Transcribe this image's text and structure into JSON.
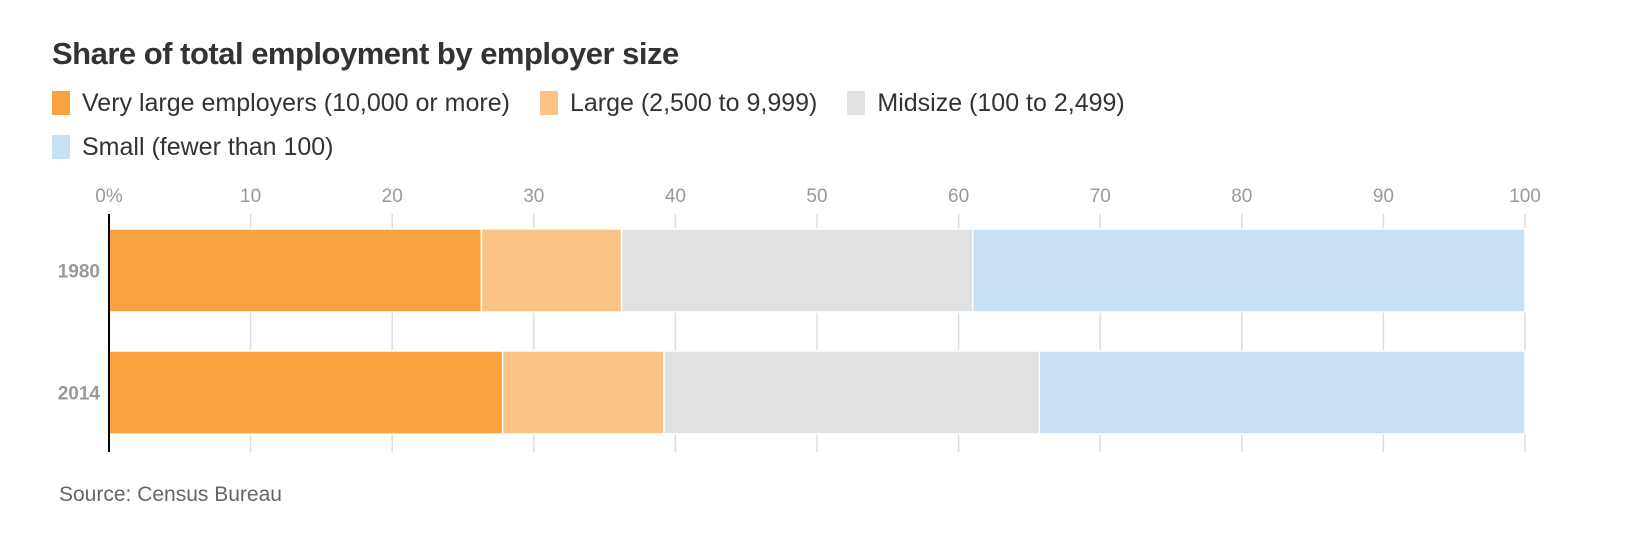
{
  "title": "Share of total employment by employer size",
  "source": "Source: Census Bureau",
  "chart_data": {
    "type": "bar",
    "orientation": "horizontal",
    "stacked": true,
    "categories": [
      "1980",
      "2014"
    ],
    "series": [
      {
        "name": "Very large employers (10,000 or more)",
        "color": "#f7a23f",
        "values": [
          26.3,
          27.8
        ]
      },
      {
        "name": "Large (2,500 to 9,999)",
        "color": "#fbc285",
        "values": [
          9.9,
          11.4
        ]
      },
      {
        "name": "Midsize (100 to 2,499)",
        "color": "#e0e1e3",
        "values": [
          24.8,
          26.5
        ]
      },
      {
        "name": "Small (fewer than 100)",
        "color": "#c8e0f4",
        "values": [
          39.0,
          34.3
        ]
      }
    ],
    "xlim": [
      0,
      100
    ],
    "x_ticks": [
      0,
      10,
      20,
      30,
      40,
      50,
      60,
      70,
      80,
      90,
      100
    ],
    "x_tick_labels": [
      "0%",
      "10",
      "20",
      "30",
      "40",
      "50",
      "60",
      "70",
      "80",
      "90",
      "100"
    ],
    "grid": true,
    "legend_position": "top"
  }
}
